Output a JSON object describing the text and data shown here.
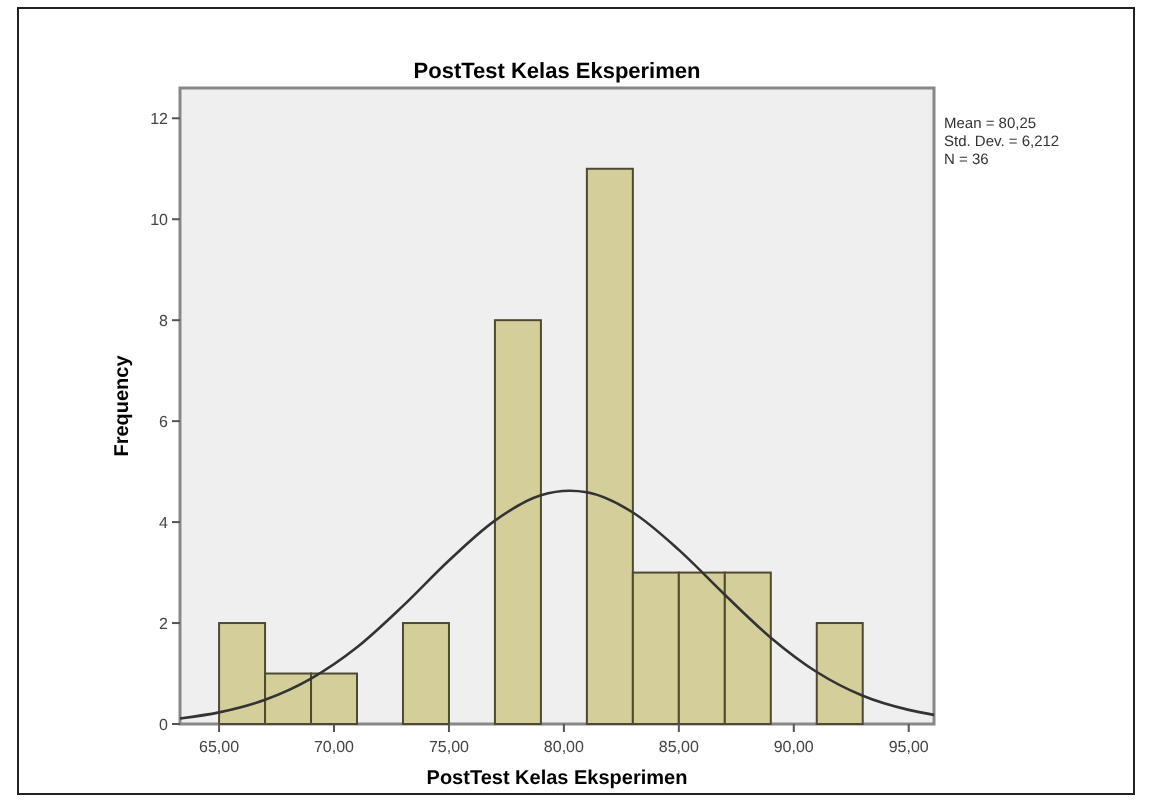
{
  "chart_data": {
    "type": "histogram",
    "title": "PostTest Kelas Eksperimen",
    "xlabel": "PostTest Kelas Eksperimen",
    "ylabel": "Frequency",
    "annotations": [
      "Mean = 80,25",
      "Std. Dev. = 6,212",
      "N = 36"
    ],
    "xlim": [
      63.3,
      96.1
    ],
    "ylim": [
      0,
      12.6
    ],
    "xticks": [
      {
        "value": 65,
        "label": "65,00"
      },
      {
        "value": 70,
        "label": "70,00"
      },
      {
        "value": 75,
        "label": "75,00"
      },
      {
        "value": 80,
        "label": "80,00"
      },
      {
        "value": 85,
        "label": "85,00"
      },
      {
        "value": 90,
        "label": "90,00"
      },
      {
        "value": 95,
        "label": "95,00"
      }
    ],
    "yticks": [
      0,
      2,
      4,
      6,
      8,
      10,
      12
    ],
    "grid": false,
    "series": [
      {
        "color": "#d4cf9a",
        "bins": [
          65,
          67,
          69,
          71,
          73,
          75,
          77,
          79,
          81,
          83,
          85,
          87,
          89,
          91,
          93
        ],
        "values": [
          2,
          1,
          1,
          0,
          2,
          0,
          8,
          0,
          11,
          3,
          3,
          3,
          0,
          2
        ]
      },
      {
        "type": "line",
        "color": "#333333",
        "x": [
          63.3,
          65,
          67,
          69,
          71,
          73,
          75,
          77,
          79,
          80.25,
          81,
          83,
          85,
          87,
          89,
          91,
          93,
          95,
          96.1
        ],
        "values": [
          0.11,
          0.23,
          0.48,
          0.9,
          1.52,
          2.34,
          3.24,
          4.03,
          4.53,
          4.62,
          4.59,
          4.19,
          3.45,
          2.56,
          1.71,
          1.03,
          0.56,
          0.28,
          0.18
        ]
      }
    ]
  }
}
